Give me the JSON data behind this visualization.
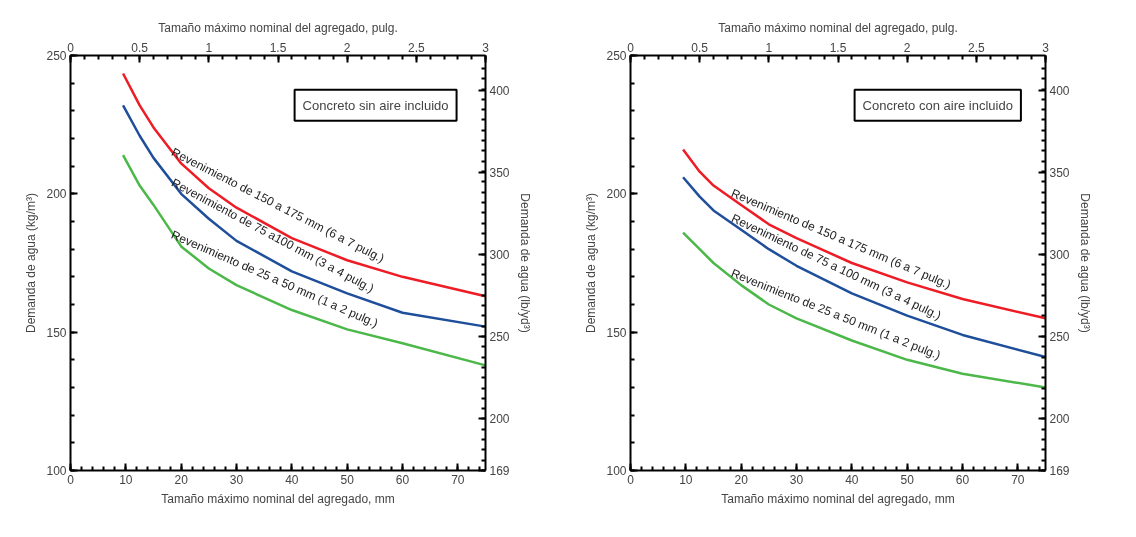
{
  "chart_data": [
    {
      "type": "line",
      "xlabel": "Tamaño máximo nominal del agregado, mm",
      "x2label": "Tamaño máximo nominal del agregado, pulg.",
      "ylabel": "Demanda de agua (kg/m³)",
      "y2label": "Demanda de agua (lb/yd³)",
      "xlim": [
        0,
        75
      ],
      "xticks": [
        0,
        10,
        20,
        30,
        40,
        50,
        60,
        70
      ],
      "x2lim": [
        0,
        3
      ],
      "x2ticks": [
        0,
        0.5,
        1,
        1.5,
        2,
        2.5,
        3
      ],
      "ylim": [
        100,
        250
      ],
      "yticks": [
        100,
        150,
        200,
        250
      ],
      "y2lim": [
        168.6,
        421.4
      ],
      "y2ticks": [
        {
          "value": 168.6,
          "label": "169"
        },
        200,
        250,
        300,
        350,
        400
      ],
      "x": [
        9.5,
        12.5,
        15,
        20,
        25,
        30,
        40,
        50,
        60,
        75
      ],
      "series": [
        {
          "name": "Revenimiento de 150 a 175 mm (6 a 7 pulg.)",
          "color": "#ee1c25",
          "values": [
            243.5,
            232,
            224,
            211,
            202,
            195,
            184,
            176,
            170,
            163
          ]
        },
        {
          "name": "Revenimiento de 75 a100 mm (3 a 4 pulg.)",
          "color": "#1f4e9a",
          "values": [
            232,
            221,
            213,
            200,
            191,
            183,
            172,
            164,
            157,
            152
          ]
        },
        {
          "name": "Revenimiento de 25 a 50 mm (1 a 2 pulg.)",
          "color": "#4cb849",
          "values": [
            214,
            203,
            196,
            181,
            173,
            167,
            158,
            151,
            146,
            138
          ]
        }
      ],
      "annotations": [
        "Concreto sin aire incluido"
      ]
    },
    {
      "type": "line",
      "xlabel": "Tamaño máximo nominal del agregado, mm",
      "x2label": "Tamaño máximo nominal del agregado, pulg.",
      "ylabel": "Demanda de agua (kg/m³)",
      "y2label": "Demanda de agua (lb/yd³)",
      "xlim": [
        0,
        75
      ],
      "xticks": [
        0,
        10,
        20,
        30,
        40,
        50,
        60,
        70
      ],
      "x2lim": [
        0,
        3
      ],
      "x2ticks": [
        0,
        0.5,
        1,
        1.5,
        2,
        2.5,
        3
      ],
      "ylim": [
        100,
        250
      ],
      "yticks": [
        100,
        150,
        200,
        250
      ],
      "y2lim": [
        168.6,
        421.4
      ],
      "y2ticks": [
        {
          "value": 168.6,
          "label": "169"
        },
        200,
        250,
        300,
        350,
        400
      ],
      "x": [
        9.5,
        12.5,
        15,
        20,
        25,
        30,
        40,
        50,
        60,
        75
      ],
      "series": [
        {
          "name": "Revenimiento de 150 a 175 mm (6 a 7 pulg.)",
          "color": "#ee1c25",
          "values": [
            216,
            208,
            203,
            196,
            189,
            184,
            175,
            168,
            162,
            155
          ]
        },
        {
          "name": "Revenimiento de 75 a 100 mm (3 a 4 pulg.)",
          "color": "#1f4e9a",
          "values": [
            206,
            199,
            194,
            187,
            180,
            174,
            164,
            156,
            149,
            141
          ]
        },
        {
          "name": "Revenimiento de 25 a 50 mm (1 a 2 pulg.)",
          "color": "#4cb849",
          "values": [
            186,
            180,
            175,
            167,
            160,
            155,
            147,
            140,
            135,
            130
          ]
        }
      ],
      "annotations": [
        "Concreto con aire incluido"
      ]
    }
  ]
}
